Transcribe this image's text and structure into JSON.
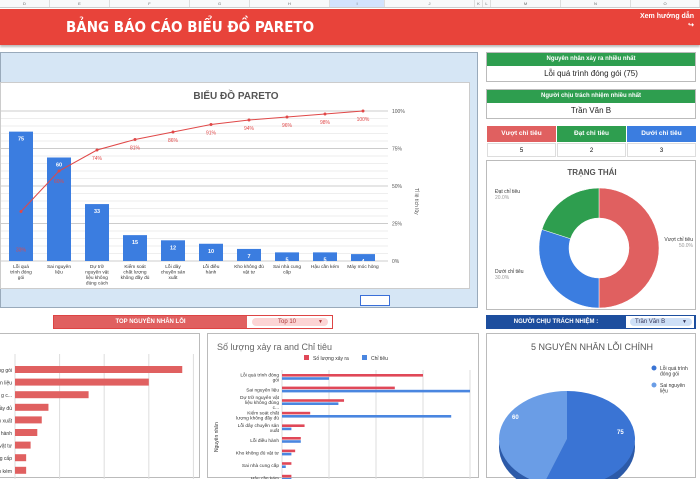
{
  "columns": [
    "D",
    "E",
    "F",
    "G",
    "H",
    "I",
    "J",
    "K",
    "L",
    "M",
    "N",
    "O"
  ],
  "header": {
    "title": "BẢNG BÁO CÁO BIỂU ĐỒ PARETO",
    "guide_link": "Xem hướng dẫn",
    "guide_icon": "arrow-icon"
  },
  "summary": {
    "top_cause_label": "Nguyên nhân xảy ra nhiều nhất",
    "top_cause_value": "Lỗi quá trình đóng gói (75)",
    "top_person_label": "Người chịu trách nhiệm nhiều nhất",
    "top_person_value": "Trần Văn B",
    "status": [
      {
        "label": "Vượt chỉ tiêu",
        "value": "5",
        "color": "#e06060"
      },
      {
        "label": "Đạt chỉ tiêu",
        "value": "2",
        "color": "#2e9e4f"
      },
      {
        "label": "Dưới chỉ tiêu",
        "value": "3",
        "color": "#3b7de0"
      }
    ]
  },
  "filters": {
    "top_label": "TOP NGUYÊN NHÂN LỖI",
    "top_value": "Top 10",
    "person_label": "NGƯỜI CHỊU TRÁCH NHIỆM :",
    "person_value": "Trần Văn B"
  },
  "chart_data": [
    {
      "type": "bar+line",
      "title": "BIỂU ĐỒ PARETO",
      "y2label": "Tỉ lệ tích lũy",
      "categories": [
        "Lỗi quá trình đóng gói",
        "Sai nguyên liệu",
        "Dự trữ nguyên vật liệu không đúng cách",
        "Kiểm soát chất lượng không đầy đủ",
        "Lỗi dây chuyền sản xuất",
        "Lỗi điều hành",
        "Kho không đủ vật tư",
        "Sai nhà cung cấp",
        "Hậu cần kém",
        "Máy móc hỏng"
      ],
      "values": [
        75,
        60,
        33,
        15,
        12,
        10,
        7,
        5,
        5,
        4
      ],
      "cumulative_pct": [
        33,
        60,
        74,
        81,
        86,
        91,
        94,
        96,
        98,
        100
      ],
      "y2_ticks": [
        "0%",
        "25%",
        "50%",
        "75%",
        "100%"
      ],
      "bar_color": "#3b7de0",
      "line_color": "#e04848"
    },
    {
      "type": "pie",
      "title": "TRẠNG THÁI",
      "slices": [
        {
          "label": "Vượt chỉ tiêu",
          "pct": "50.0%",
          "value": 50,
          "color": "#e06060"
        },
        {
          "label": "Dưới chỉ tiêu",
          "pct": "30.0%",
          "value": 30,
          "color": "#3b7de0"
        },
        {
          "label": "Đạt chỉ tiêu",
          "pct": "20.0%",
          "value": 20,
          "color": "#2e9e4f"
        }
      ]
    },
    {
      "type": "bar",
      "orientation": "horizontal",
      "values": [
        75,
        60,
        33,
        15,
        12,
        10,
        7,
        5,
        5
      ],
      "color": "#e06060"
    },
    {
      "type": "bar",
      "orientation": "horizontal",
      "title": "Số lượng xảy ra and Chỉ tiêu",
      "ylabel": "Nguyên nhân",
      "categories": [
        "Lỗi quá trình đóng gói",
        "Sai nguyên liệu",
        "Dự trữ nguyên vật liệu không đúng c...",
        "Kiểm soát chất lượng không đầy đủ",
        "Lỗi dây chuyền sản xuất",
        "Lỗi điều hành",
        "Kho không đủ vật tư",
        "Sai nhà cung cấp",
        "Hậu cần kém"
      ],
      "series": [
        {
          "name": "Số lượng xảy ra",
          "values": [
            75,
            60,
            33,
            15,
            12,
            10,
            7,
            5,
            5
          ],
          "color": "#e04858"
        },
        {
          "name": "Chỉ tiêu",
          "values": [
            25,
            100,
            30,
            90,
            5,
            10,
            5,
            2,
            5
          ],
          "color": "#4a86e0"
        }
      ]
    },
    {
      "type": "pie",
      "title": "5 NGUYÊN NHÂN LỖI CHÍNH",
      "slices": [
        {
          "label": "Lỗi quá trình đóng gói",
          "value": 75,
          "color": "#3a74d4"
        },
        {
          "label": "Sai nguyên liệu",
          "value": 60,
          "color": "#6a9de6"
        }
      ]
    }
  ]
}
